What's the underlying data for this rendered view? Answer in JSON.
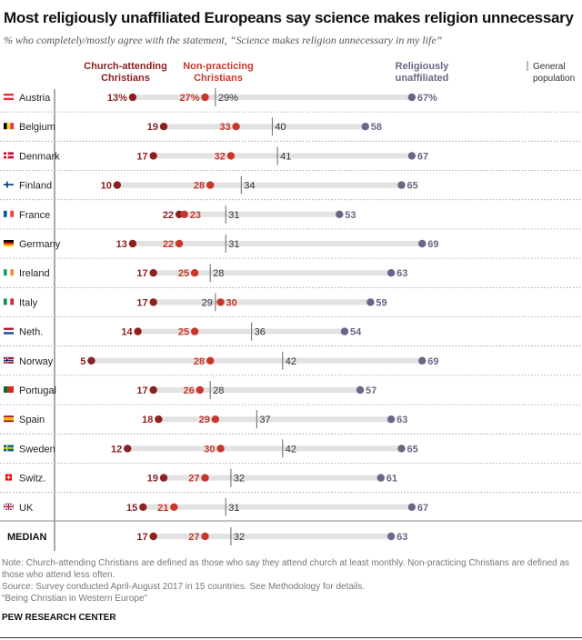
{
  "title": "Most religiously unaffiliated Europeans say science makes religion unnecessary",
  "subtitle": "% who completely/mostly agree with the statement, “Science makes religion unnecessary in my life”",
  "notes": [
    "Note: Church-attending Christians are defined as those who say they attend church at least monthly. Non-practicing Christians are defined as those who attend less often.",
    "Source: Survey conducted April-August 2017 in 15 countries. See Methodology for details.",
    "“Being Christian in Western Europe”"
  ],
  "brand": "PEW RESEARCH CENTER",
  "colors": {
    "church": "#8c2121",
    "nonpracticing": "#c9372c",
    "unaffiliated": "#6d6487",
    "bar": "#e2e2e2",
    "general": "#555555"
  },
  "chart_data": {
    "type": "dot",
    "title": "Most religiously unaffiliated Europeans say science makes religion unnecessary",
    "xlim": [
      0,
      100
    ],
    "legend": [
      {
        "key": "church",
        "label1": "Church-attending",
        "label2": "Christians"
      },
      {
        "key": "nonpracticing",
        "label1": "Non-practicing",
        "label2": "Christians"
      },
      {
        "key": "unaffiliated",
        "label1": "Religiously",
        "label2": "unaffiliated"
      },
      {
        "key": "general",
        "label1": "General",
        "label2": "population"
      }
    ],
    "rows": [
      {
        "country": "Austria",
        "church": 13,
        "nonpracticing": 27,
        "general": 29,
        "unaffiliated": 67,
        "flag": {
          "dir": "h",
          "colors": [
            "#ed2939",
            "#ffffff",
            "#ed2939"
          ]
        }
      },
      {
        "country": "Belgium",
        "church": 19,
        "nonpracticing": 33,
        "general": 40,
        "unaffiliated": 58,
        "flag": {
          "dir": "v",
          "colors": [
            "#000000",
            "#fdda24",
            "#ef3340"
          ]
        }
      },
      {
        "country": "Denmark",
        "church": 17,
        "nonpracticing": 32,
        "general": 41,
        "unaffiliated": 67,
        "flag": {
          "dir": "cross",
          "colors": [
            "#c60c30",
            "#ffffff"
          ]
        }
      },
      {
        "country": "Finland",
        "church": 10,
        "nonpracticing": 28,
        "general": 34,
        "unaffiliated": 65,
        "flag": {
          "dir": "cross",
          "colors": [
            "#ffffff",
            "#003580"
          ]
        }
      },
      {
        "country": "France",
        "church": 22,
        "nonpracticing": 23,
        "general": 31,
        "unaffiliated": 53,
        "flag": {
          "dir": "v",
          "colors": [
            "#0055a4",
            "#ffffff",
            "#ef4135"
          ]
        }
      },
      {
        "country": "Germany",
        "church": 13,
        "nonpracticing": 22,
        "general": 31,
        "unaffiliated": 69,
        "flag": {
          "dir": "h",
          "colors": [
            "#000000",
            "#dd0000",
            "#ffce00"
          ]
        }
      },
      {
        "country": "Ireland",
        "church": 17,
        "nonpracticing": 25,
        "general": 28,
        "unaffiliated": 63,
        "flag": {
          "dir": "v",
          "colors": [
            "#169b62",
            "#ffffff",
            "#ff883e"
          ]
        }
      },
      {
        "country": "Italy",
        "church": 17,
        "nonpracticing": 30,
        "general": 29,
        "unaffiliated": 59,
        "flag": {
          "dir": "v",
          "colors": [
            "#009246",
            "#ffffff",
            "#ce2b37"
          ]
        }
      },
      {
        "country": "Neth.",
        "church": 14,
        "nonpracticing": 25,
        "general": 36,
        "unaffiliated": 54,
        "flag": {
          "dir": "h",
          "colors": [
            "#ae1c28",
            "#ffffff",
            "#21468b"
          ]
        }
      },
      {
        "country": "Norway",
        "church": 5,
        "nonpracticing": 28,
        "general": 42,
        "unaffiliated": 69,
        "flag": {
          "dir": "cross2",
          "colors": [
            "#ba0c2f",
            "#ffffff",
            "#00205b"
          ]
        }
      },
      {
        "country": "Portugal",
        "church": 17,
        "nonpracticing": 26,
        "general": 28,
        "unaffiliated": 57,
        "flag": {
          "dir": "v2",
          "colors": [
            "#046a38",
            "#da291c"
          ]
        }
      },
      {
        "country": "Spain",
        "church": 18,
        "nonpracticing": 29,
        "general": 37,
        "unaffiliated": 63,
        "flag": {
          "dir": "h121",
          "colors": [
            "#aa151b",
            "#f1bf00",
            "#aa151b"
          ]
        }
      },
      {
        "country": "Sweden",
        "church": 12,
        "nonpracticing": 30,
        "general": 42,
        "unaffiliated": 65,
        "flag": {
          "dir": "cross",
          "colors": [
            "#006aa7",
            "#fecc00"
          ]
        }
      },
      {
        "country": "Switz.",
        "church": 19,
        "nonpracticing": 27,
        "general": 32,
        "unaffiliated": 61,
        "flag": {
          "dir": "swiss",
          "colors": [
            "#ff0000",
            "#ffffff"
          ]
        }
      },
      {
        "country": "UK",
        "church": 15,
        "nonpracticing": 21,
        "general": 31,
        "unaffiliated": 67,
        "flag": {
          "dir": "uk",
          "colors": [
            "#012169",
            "#ffffff",
            "#c8102e"
          ]
        }
      }
    ],
    "median": {
      "country": "MEDIAN",
      "church": 17,
      "nonpracticing": 27,
      "general": 32,
      "unaffiliated": 63
    }
  }
}
